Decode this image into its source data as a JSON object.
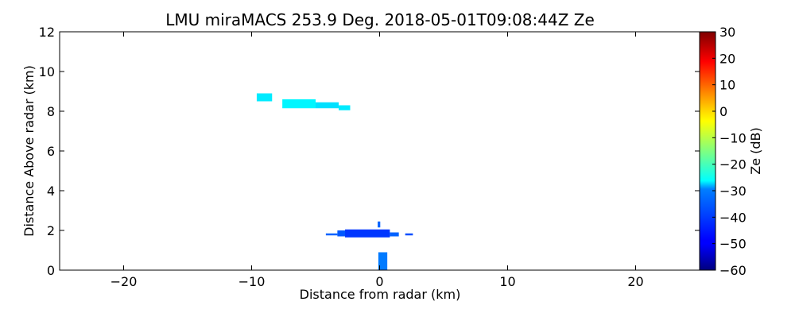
{
  "chart_data": {
    "type": "heatmap",
    "title": "LMU miraMACS 253.9 Deg. 2018-05-01T09:08:44Z  Ze",
    "xlabel": "Distance from radar (km)",
    "ylabel": "Distance Above radar  (km)",
    "xlim": [
      -25,
      25
    ],
    "ylim": [
      0,
      12
    ],
    "x_ticks": [
      "−20",
      "−10",
      "0",
      "10",
      "20"
    ],
    "x_tick_values": [
      -20,
      -10,
      0,
      10,
      20
    ],
    "y_ticks": [
      "0",
      "2",
      "4",
      "6",
      "8",
      "10",
      "12"
    ],
    "y_tick_values": [
      0,
      2,
      4,
      6,
      8,
      10,
      12
    ],
    "grid": false,
    "colorbar": {
      "label": "Ze (dB)",
      "range": [
        -60,
        30
      ],
      "colormap": "jet",
      "ticks": [
        "30",
        "20",
        "10",
        "0",
        "−10",
        "−20",
        "−30",
        "−40",
        "−50",
        "−60"
      ],
      "tick_values": [
        30,
        20,
        10,
        0,
        -10,
        -20,
        -30,
        -40,
        -50,
        -60
      ]
    },
    "echoes": [
      {
        "x": [
          -9.6,
          -8.4
        ],
        "y": [
          8.5,
          8.9
        ],
        "ze": -28
      },
      {
        "x": [
          -7.6,
          -5.0
        ],
        "y": [
          8.15,
          8.6
        ],
        "ze": -27
      },
      {
        "x": [
          -5.0,
          -3.2
        ],
        "y": [
          8.15,
          8.45
        ],
        "ze": -29
      },
      {
        "x": [
          -3.2,
          -2.3
        ],
        "y": [
          8.05,
          8.3
        ],
        "ze": -28
      },
      {
        "x": [
          -4.2,
          -3.3
        ],
        "y": [
          1.75,
          1.85
        ],
        "ze": -40
      },
      {
        "x": [
          -3.3,
          -1.2
        ],
        "y": [
          1.7,
          2.0
        ],
        "ze": -41
      },
      {
        "x": [
          -2.7,
          0.8
        ],
        "y": [
          1.65,
          2.05
        ],
        "ze": -44
      },
      {
        "x": [
          0.8,
          1.5
        ],
        "y": [
          1.7,
          1.9
        ],
        "ze": -40
      },
      {
        "x": [
          2.0,
          2.6
        ],
        "y": [
          1.75,
          1.85
        ],
        "ze": -42
      },
      {
        "x": [
          -0.15,
          0.05
        ],
        "y": [
          2.15,
          2.45
        ],
        "ze": -40
      },
      {
        "x": [
          -0.1,
          0.6
        ],
        "y": [
          0.0,
          0.9
        ],
        "ze": -38
      }
    ],
    "colors": {
      "background": "#ffffff",
      "axes": "#000000"
    }
  }
}
